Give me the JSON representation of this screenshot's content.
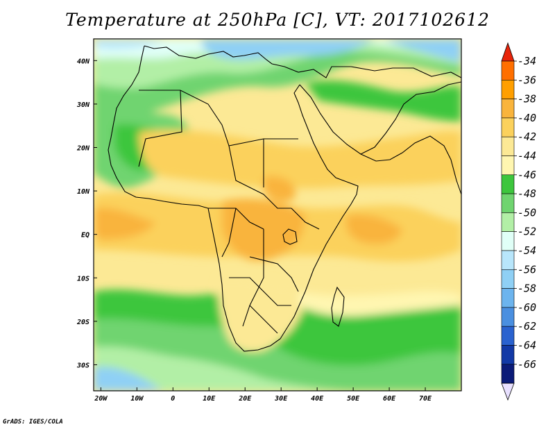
{
  "title": "Temperature at 250hPa [C], VT: 2017102612",
  "credit": "GrADS: IGES/COLA",
  "map": {
    "lon_range": [
      -22,
      80
    ],
    "lat_range": [
      -36,
      45
    ],
    "lon_ticks": [
      "20W",
      "10W",
      "0",
      "10E",
      "20E",
      "30E",
      "40E",
      "50E",
      "60E",
      "70E"
    ],
    "lat_ticks": [
      "40N",
      "30N",
      "20N",
      "10N",
      "EQ",
      "10S",
      "20S",
      "30S"
    ]
  },
  "colorbar": {
    "labels": [
      "-34",
      "-36",
      "-38",
      "-40",
      "-42",
      "-44",
      "-46",
      "-48",
      "-50",
      "-52",
      "-54",
      "-56",
      "-58",
      "-60",
      "-62",
      "-64",
      "-66"
    ],
    "colors": [
      "#e8240a",
      "#ff6f00",
      "#ff9f00",
      "#f9b43c",
      "#fbd15c",
      "#fce995",
      "#fff6b0",
      "#3dc63d",
      "#6fd46f",
      "#b2efa6",
      "#e0fff7",
      "#b8e6fb",
      "#8fd0f5",
      "#6cb4ee",
      "#4a8fe0",
      "#2a62cf",
      "#1239a6",
      "#0b1b78",
      "#e8e0ff"
    ]
  }
}
